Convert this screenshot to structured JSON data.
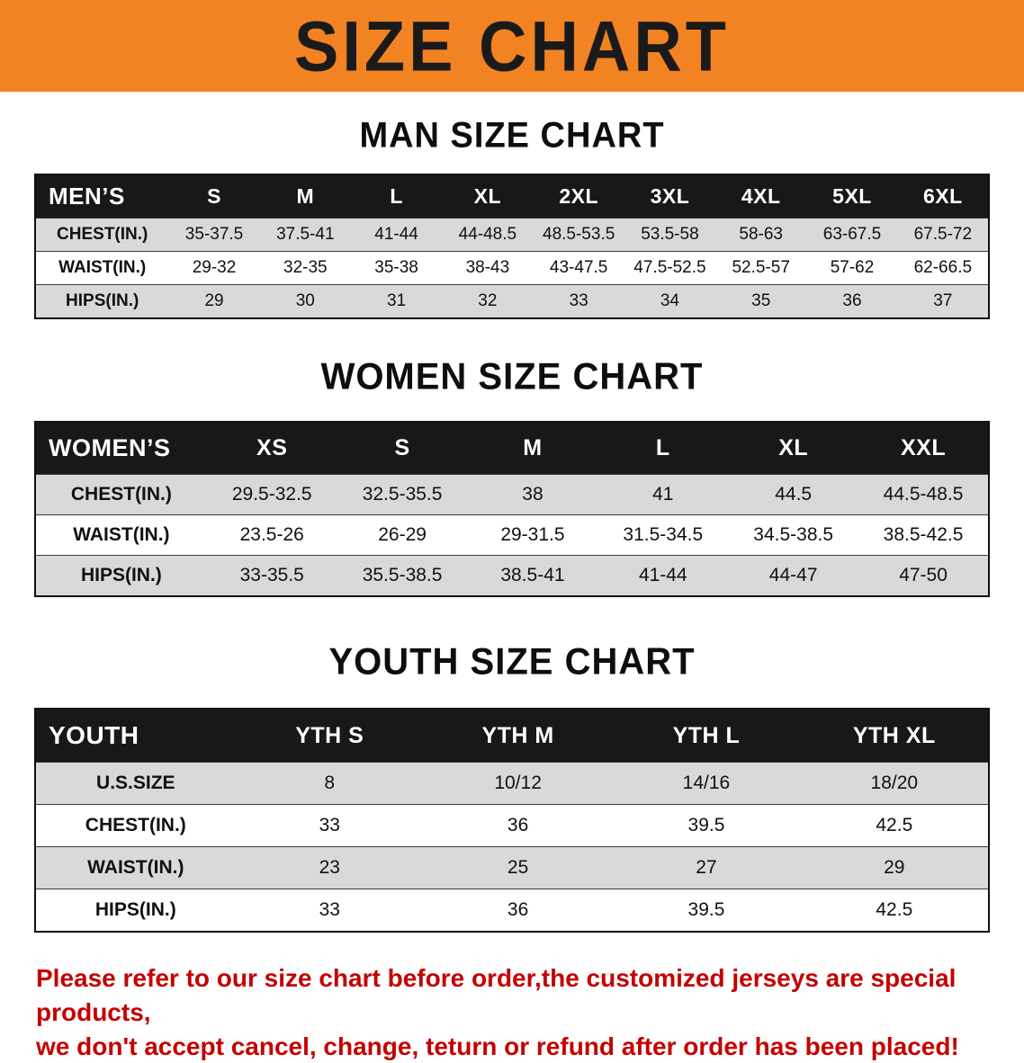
{
  "banner": {
    "title": "SIZE CHART"
  },
  "colors": {
    "banner_bg": "#f28322",
    "banner_text": "#1a1a1a",
    "header_bg": "#181818",
    "row_alt": "#d9d9d9",
    "disclaimer_color": "#c40000"
  },
  "sections": [
    {
      "title": "MAN SIZE CHART",
      "header": [
        "MEN’S",
        "S",
        "M",
        "L",
        "XL",
        "2XL",
        "3XL",
        "4XL",
        "5XL",
        "6XL"
      ],
      "rows": [
        {
          "label": "CHEST(IN.)",
          "values": [
            "35-37.5",
            "37.5-41",
            "41-44",
            "44-48.5",
            "48.5-53.5",
            "53.5-58",
            "58-63",
            "63-67.5",
            "67.5-72"
          ]
        },
        {
          "label": "WAIST(IN.)",
          "values": [
            "29-32",
            "32-35",
            "35-38",
            "38-43",
            "43-47.5",
            "47.5-52.5",
            "52.5-57",
            "57-62",
            "62-66.5"
          ]
        },
        {
          "label": "HIPS(IN.)",
          "values": [
            "29",
            "30",
            "31",
            "32",
            "33",
            "34",
            "35",
            "36",
            "37"
          ]
        }
      ]
    },
    {
      "title": "WOMEN SIZE CHART",
      "header": [
        "WOMEN’S",
        "XS",
        "S",
        "M",
        "L",
        "XL",
        "XXL"
      ],
      "rows": [
        {
          "label": "CHEST(IN.)",
          "values": [
            "29.5-32.5",
            "32.5-35.5",
            "38",
            "41",
            "44.5",
            "44.5-48.5"
          ]
        },
        {
          "label": "WAIST(IN.)",
          "values": [
            "23.5-26",
            "26-29",
            "29-31.5",
            "31.5-34.5",
            "34.5-38.5",
            "38.5-42.5"
          ]
        },
        {
          "label": "HIPS(IN.)",
          "values": [
            "33-35.5",
            "35.5-38.5",
            "38.5-41",
            "41-44",
            "44-47",
            "47-50"
          ]
        }
      ]
    },
    {
      "title": "YOUTH SIZE CHART",
      "header": [
        "YOUTH",
        "YTH S",
        "YTH M",
        "YTH L",
        "YTH XL"
      ],
      "rows": [
        {
          "label": "U.S.SIZE",
          "values": [
            "8",
            "10/12",
            "14/16",
            "18/20"
          ]
        },
        {
          "label": "CHEST(IN.)",
          "values": [
            "33",
            "36",
            "39.5",
            "42.5"
          ]
        },
        {
          "label": "WAIST(IN.)",
          "values": [
            "23",
            "25",
            "27",
            "29"
          ]
        },
        {
          "label": "HIPS(IN.)",
          "values": [
            "33",
            "36",
            "39.5",
            "42.5"
          ]
        }
      ]
    }
  ],
  "disclaimer": {
    "line1": "Please refer to our size chart before order,the customized jerseys are special products,",
    "line2": "we don't accept cancel, change, teturn or refund after order has been placed!"
  }
}
